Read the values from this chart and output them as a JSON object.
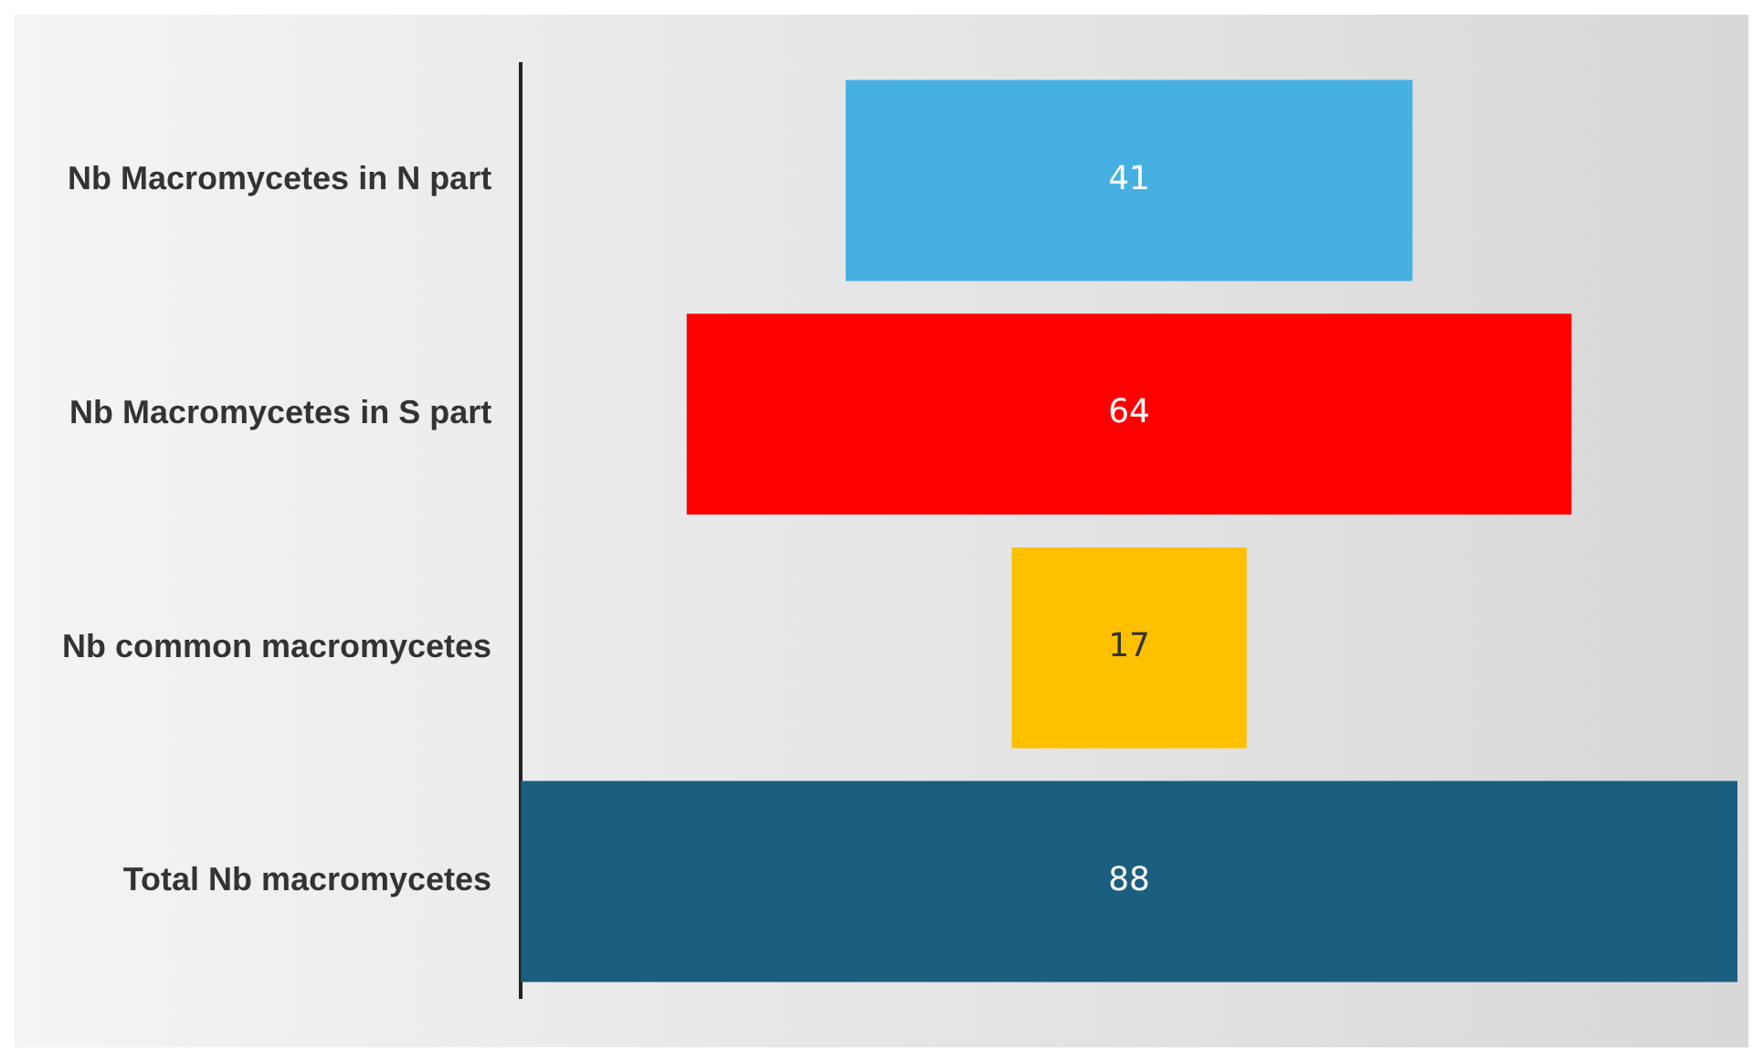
{
  "chart_data": {
    "type": "other",
    "categories": [
      "Nb Macromycetes in N part",
      "Nb Macromycetes in S part",
      "Nb common macromycetes",
      "Total Nb macromycetes"
    ],
    "values": [
      41,
      64,
      17,
      88
    ],
    "colors": [
      "#45b0e1",
      "#ff0000",
      "#ffc000",
      "#1a5e80"
    ],
    "data_labels": true
  }
}
